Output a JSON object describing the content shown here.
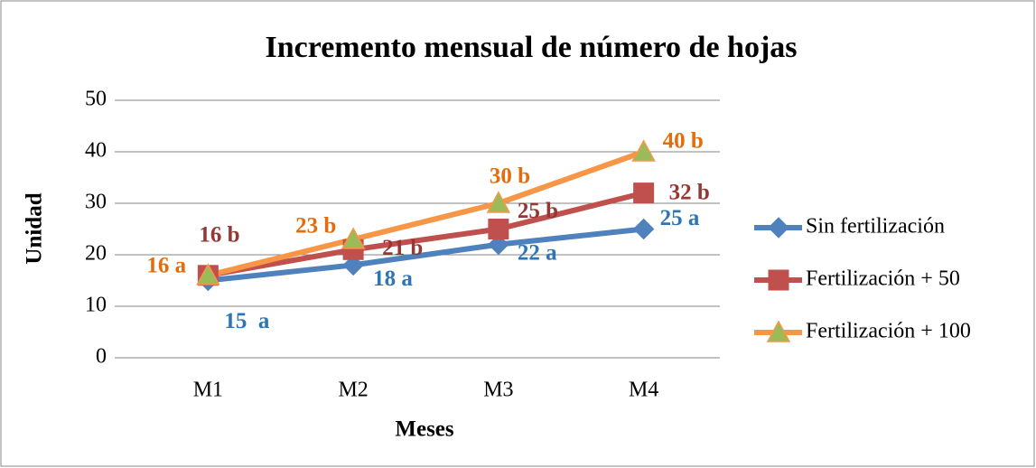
{
  "chart_data": {
    "type": "line",
    "title": "Incremento mensual de número de hojas",
    "xlabel": "Meses",
    "ylabel": "Unidad",
    "categories": [
      "M1",
      "M2",
      "M3",
      "M4"
    ],
    "series": [
      {
        "name": "Sin fertilización",
        "color": "#4f81bd",
        "label_color": "#2e75b6",
        "marker": "diamond",
        "values": [
          15,
          18,
          22,
          25
        ],
        "value_labels": [
          "15  a",
          "18 a",
          "22 a",
          "25 a"
        ]
      },
      {
        "name": "Fertilización + 50",
        "color": "#c0504d",
        "label_color": "#953735",
        "marker": "square",
        "values": [
          16,
          21,
          25,
          32
        ],
        "value_labels": [
          "16 b",
          "21 b",
          "25 b",
          "32 b"
        ]
      },
      {
        "name": "Fertilización + 100",
        "color": "#f79646",
        "marker_fill": "#9bbb59",
        "label_color": "#e46c0a",
        "marker": "triangle",
        "values": [
          16,
          23,
          30,
          40
        ],
        "value_labels": [
          "16 a",
          "23 b",
          "30 b",
          "40 b"
        ]
      }
    ],
    "ylim": [
      0,
      50
    ],
    "yticks": [
      0,
      10,
      20,
      30,
      40,
      50
    ],
    "grid": true,
    "legend": "right"
  }
}
